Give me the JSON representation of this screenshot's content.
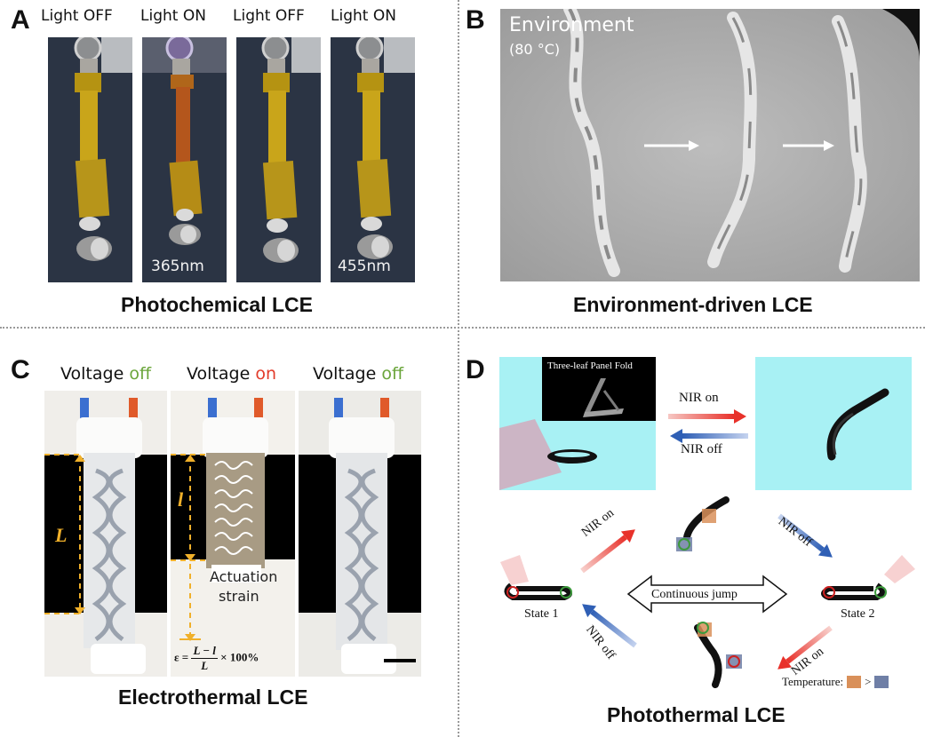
{
  "panels": {
    "a": {
      "letter": "A",
      "caption": "Photochemical LCE",
      "labels": [
        "Light OFF",
        "Light ON",
        "Light OFF",
        "Light ON"
      ],
      "wavelengths": [
        "365nm",
        "455nm"
      ]
    },
    "b": {
      "letter": "B",
      "caption": "Environment-driven LCE",
      "label_line1": "Environment",
      "label_line2": "(80 °C)"
    },
    "c": {
      "letter": "C",
      "caption": "Electrothermal LCE",
      "voltage_word": "Voltage",
      "states": [
        "off",
        "on",
        "off"
      ],
      "L_label": "L",
      "l_label": "l",
      "actuation_line1": "Actuation",
      "actuation_line2": "strain",
      "formula_prefix": "ε =",
      "formula_num": "L − l",
      "formula_den": "L",
      "formula_suffix": "× 100%"
    },
    "d": {
      "letter": "D",
      "caption": "Photothermal LCE",
      "inset_title": "Three-leaf Panel Fold",
      "nir_on": "NIR on",
      "nir_off": "NIR off",
      "continuous_jump": "Continuous jump",
      "state1": "State 1",
      "state2": "State 2",
      "temperature_label": "Temperature:",
      "greater": ">",
      "colors": {
        "hot": "#d9905a",
        "cold": "#6f7fa6",
        "cyan": "#a8f1f4"
      }
    }
  }
}
